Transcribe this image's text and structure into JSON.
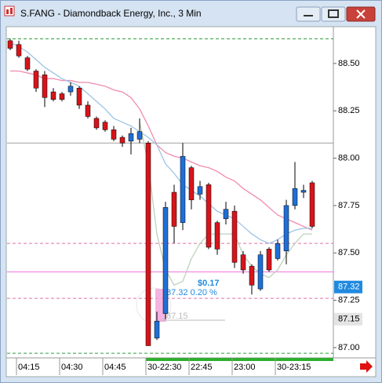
{
  "chart_data": {
    "type": "candlestick",
    "title": "S.FANG - Diamondback Energy, Inc., 3 Min",
    "categories": [
      null,
      "04:15",
      null,
      null,
      null,
      null,
      "04:30",
      null,
      null,
      null,
      null,
      "04:45",
      null,
      null,
      null,
      null,
      "30-22:30",
      null,
      null,
      null,
      null,
      "22:45",
      null,
      null,
      null,
      null,
      "23:00",
      null,
      null,
      null,
      null,
      "30-23:15",
      null,
      null,
      null,
      null
    ],
    "open": [
      88.62,
      88.6,
      88.53,
      88.46,
      88.44,
      88.35,
      88.34,
      88.35,
      88.37,
      88.28,
      88.21,
      88.19,
      88.15,
      88.11,
      88.09,
      88.1,
      88.08,
      87.05,
      87.18,
      87.82,
      87.66,
      87.95,
      87.81,
      87.86,
      87.66,
      87.68,
      87.72,
      87.49,
      87.43,
      87.31,
      87.52,
      87.47,
      87.51,
      87.75,
      87.82,
      87.87
    ],
    "high": [
      88.63,
      88.62,
      88.54,
      88.47,
      88.46,
      88.37,
      88.35,
      88.4,
      88.38,
      88.3,
      88.22,
      88.2,
      88.17,
      88.12,
      88.16,
      88.21,
      88.09,
      87.19,
      87.77,
      87.86,
      88.08,
      87.96,
      87.88,
      87.87,
      87.67,
      87.77,
      87.75,
      87.51,
      87.44,
      87.51,
      87.53,
      87.57,
      87.78,
      87.98,
      87.86,
      87.88
    ],
    "low": [
      88.57,
      88.53,
      88.46,
      88.35,
      88.27,
      88.3,
      88.3,
      88.33,
      88.26,
      88.21,
      88.15,
      88.14,
      88.09,
      88.06,
      88.02,
      88.08,
      87.01,
      87.04,
      87.15,
      87.55,
      87.62,
      87.73,
      87.78,
      87.52,
      87.49,
      87.65,
      87.42,
      87.39,
      87.28,
      87.3,
      87.4,
      87.46,
      87.44,
      87.73,
      87.79,
      87.63
    ],
    "close": [
      88.58,
      88.54,
      88.47,
      88.37,
      88.32,
      88.31,
      88.31,
      88.38,
      88.28,
      88.22,
      88.16,
      88.15,
      88.1,
      88.08,
      88.13,
      88.14,
      87.01,
      87.14,
      87.74,
      87.64,
      88.01,
      87.78,
      87.85,
      87.53,
      87.52,
      87.73,
      87.45,
      87.41,
      87.33,
      87.49,
      87.41,
      87.55,
      87.75,
      87.84,
      87.83,
      87.64
    ],
    "up_color": "#1f6fd6",
    "down_color": "#d7141a",
    "overlays": [
      {
        "color": "#f08ab0",
        "values": [
          88.46,
          88.46,
          88.45,
          88.44,
          88.42,
          88.42,
          88.41,
          88.41,
          88.4,
          88.4,
          88.39,
          88.38,
          88.36,
          88.35,
          88.32,
          88.26,
          88.17,
          88.07,
          88.03,
          88.01,
          88.0,
          87.98,
          87.96,
          87.95,
          87.93,
          87.9,
          87.88,
          87.84,
          87.81,
          87.78,
          87.74,
          87.7,
          87.68,
          87.66,
          87.64,
          87.62
        ]
      },
      {
        "color": "#9cc3e6",
        "values": [
          88.61,
          88.59,
          88.56,
          88.52,
          88.48,
          88.45,
          88.42,
          88.4,
          88.38,
          88.34,
          88.3,
          88.26,
          88.21,
          88.19,
          88.17,
          88.14,
          88.11,
          88.07,
          87.97,
          87.92,
          87.86,
          87.83,
          87.8,
          87.76,
          87.72,
          87.7,
          87.68,
          87.64,
          87.6,
          87.57,
          87.55,
          87.57,
          87.6,
          87.62,
          87.63,
          87.63
        ]
      },
      {
        "color": "#bcd2bc",
        "values": [
          null,
          null,
          null,
          null,
          null,
          null,
          null,
          null,
          null,
          null,
          null,
          null,
          null,
          null,
          null,
          88.19,
          87.97,
          87.6,
          87.41,
          87.33,
          87.35,
          87.47,
          87.55,
          87.6,
          87.6,
          87.6,
          87.6,
          87.49,
          87.43,
          87.39,
          87.37,
          87.41,
          87.49,
          87.55,
          87.6,
          87.6
        ]
      }
    ],
    "hlines": [
      {
        "value": 88.63,
        "color": "#2e9e3e",
        "dash": true
      },
      {
        "value": 88.08,
        "color": "#a0a0a0",
        "dash": false
      },
      {
        "value": 87.55,
        "color": "#e070a8",
        "dash": true
      },
      {
        "value": 87.4,
        "color": "#f070e0",
        "dash": false
      },
      {
        "value": 87.26,
        "color": "#e070a8",
        "dash": true
      },
      {
        "value": 86.97,
        "color": "#2e9e3e",
        "dash": true
      }
    ],
    "price_markers": [
      {
        "value": 87.32,
        "color": "#1f8ae0",
        "text_color": "#ffffff"
      },
      {
        "value": 87.15,
        "color": "#e4e4e4",
        "text_color": "#000000"
      }
    ],
    "annotations": [
      "$0.17",
      "87.32 0.20 %",
      "87.15"
    ],
    "ylim": [
      86.95,
      88.69
    ],
    "yticks": [
      {
        "value": 88.5,
        "label": "88.50"
      },
      88.25,
      {
        "value": 88,
        "label": "88.00"
      },
      87.75,
      {
        "value": 87.5,
        "label": "87.50"
      },
      87.25,
      {
        "value": 87,
        "label": "87.00"
      }
    ]
  }
}
